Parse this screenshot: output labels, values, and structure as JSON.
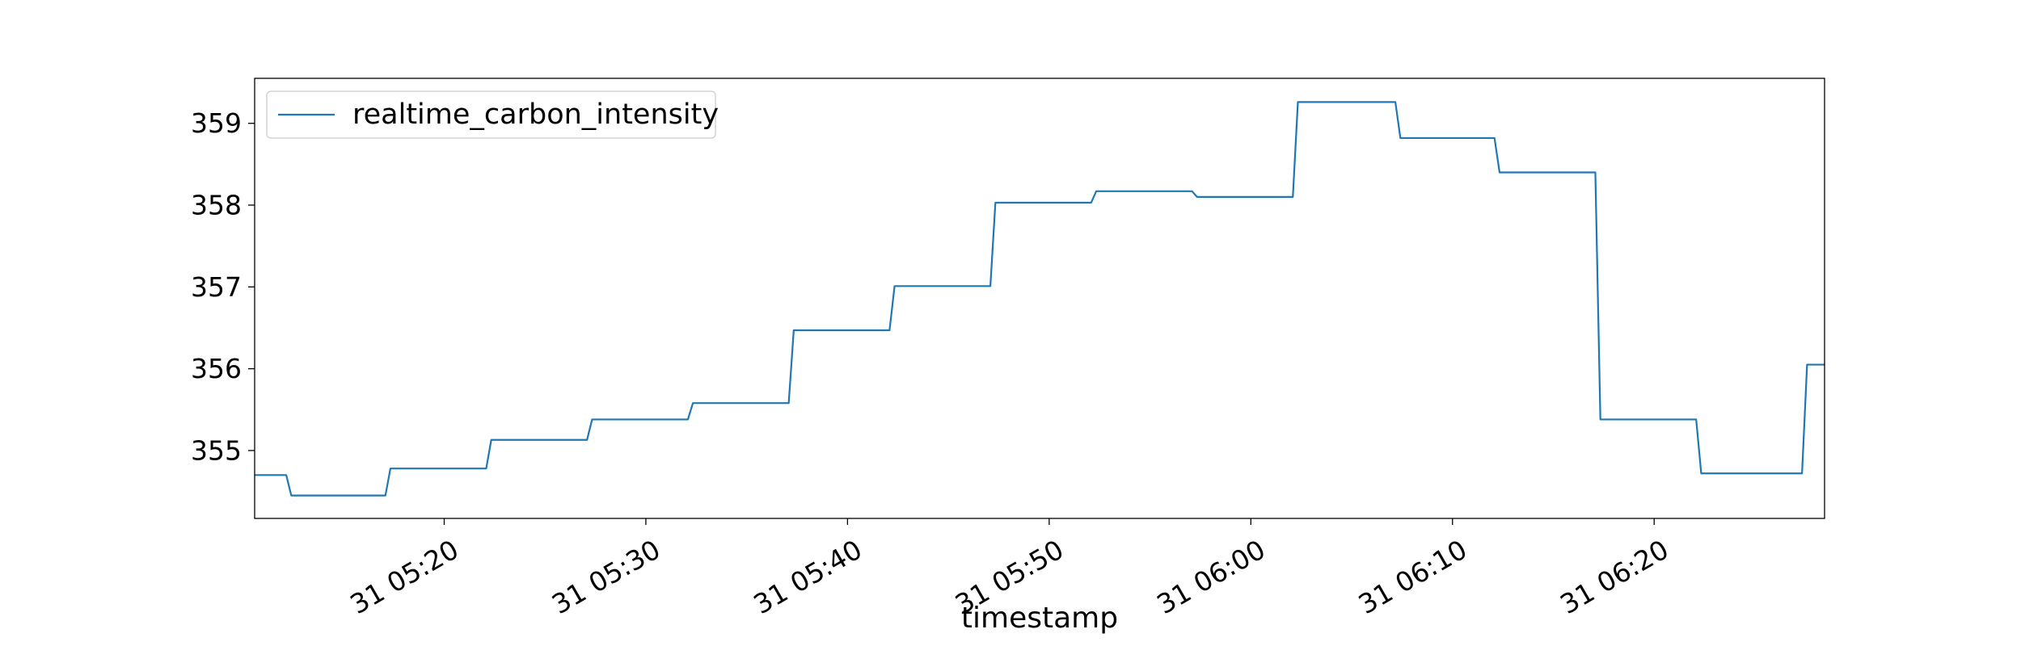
{
  "chart_data": {
    "type": "line",
    "title": "",
    "xlabel": "timestamp",
    "ylabel": "",
    "xlim": [
      "05:10:36",
      "06:28:27"
    ],
    "ylim": [
      354.17,
      359.55
    ],
    "grid": false,
    "legend": {
      "placement": "top-left",
      "entries": [
        "realtime_carbon_intensity"
      ]
    },
    "x_ticks": [
      {
        "value": "05:20:00",
        "label": "31 05:20"
      },
      {
        "value": "05:30:00",
        "label": "31 05:30"
      },
      {
        "value": "05:40:00",
        "label": "31 05:40"
      },
      {
        "value": "05:50:00",
        "label": "31 05:50"
      },
      {
        "value": "06:00:00",
        "label": "31 06:00"
      },
      {
        "value": "06:10:00",
        "label": "31 06:10"
      },
      {
        "value": "06:20:00",
        "label": "31 06:20"
      }
    ],
    "y_ticks": [
      355,
      356,
      357,
      358,
      359
    ],
    "series": [
      {
        "name": "realtime_carbon_intensity",
        "color": "#1f77b4",
        "points": [
          [
            "05:10:36",
            354.7
          ],
          [
            "05:12:10",
            354.7
          ],
          [
            "05:12:25",
            354.45
          ],
          [
            "05:17:05",
            354.45
          ],
          [
            "05:17:20",
            354.78
          ],
          [
            "05:22:05",
            354.78
          ],
          [
            "05:22:20",
            355.13
          ],
          [
            "05:27:05",
            355.13
          ],
          [
            "05:27:20",
            355.38
          ],
          [
            "05:32:05",
            355.38
          ],
          [
            "05:32:20",
            355.58
          ],
          [
            "05:37:05",
            355.58
          ],
          [
            "05:37:20",
            356.47
          ],
          [
            "05:42:05",
            356.47
          ],
          [
            "05:42:20",
            357.01
          ],
          [
            "05:47:05",
            357.01
          ],
          [
            "05:47:20",
            358.03
          ],
          [
            "05:52:05",
            358.03
          ],
          [
            "05:52:20",
            358.17
          ],
          [
            "05:57:05",
            358.17
          ],
          [
            "05:57:20",
            358.1
          ],
          [
            "06:02:05",
            358.1
          ],
          [
            "06:02:20",
            359.26
          ],
          [
            "06:07:10",
            359.26
          ],
          [
            "06:07:25",
            358.82
          ],
          [
            "06:12:05",
            358.82
          ],
          [
            "06:12:20",
            358.4
          ],
          [
            "06:17:05",
            358.4
          ],
          [
            "06:17:20",
            355.38
          ],
          [
            "06:22:05",
            355.38
          ],
          [
            "06:22:20",
            354.72
          ],
          [
            "06:27:20",
            354.72
          ],
          [
            "06:27:35",
            356.05
          ],
          [
            "06:28:27",
            356.05
          ]
        ]
      }
    ]
  }
}
